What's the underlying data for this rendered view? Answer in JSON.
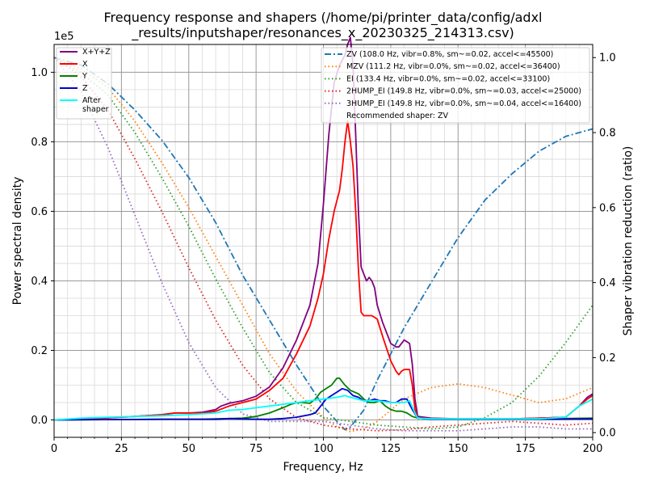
{
  "chart_data": {
    "type": "line",
    "title_line1": "Frequency response and shapers (/home/pi/printer_data/config/adxl",
    "title_line2": "_results/inputshaper/resonances_x_20230325_214313.csv)",
    "xlabel": "Frequency, Hz",
    "ylabel": "Power spectral density",
    "y2label": "Shaper vibration reduction (ratio)",
    "y_multiplier": "1e5",
    "xlim": [
      0,
      200
    ],
    "ylim": [
      -0.05,
      1.08
    ],
    "y2lim": [
      -0.0125,
      1.035
    ],
    "xticks": [
      "0",
      "25",
      "50",
      "75",
      "100",
      "125",
      "150",
      "175",
      "200"
    ],
    "yticks": [
      "0.0",
      "0.2",
      "0.4",
      "0.6",
      "0.8",
      "1.0"
    ],
    "y2ticks": [
      "0.0",
      "0.2",
      "0.4",
      "0.6",
      "0.8",
      "1.0"
    ],
    "grid": true,
    "psd_series": [
      {
        "name": "X+Y+Z",
        "color": "#800080",
        "x": [
          0,
          5,
          10,
          20,
          30,
          40,
          45,
          50,
          55,
          60,
          62,
          65,
          70,
          75,
          80,
          85,
          90,
          95,
          98,
          100,
          102,
          104,
          106,
          108,
          109,
          110,
          111,
          112,
          113,
          114,
          115,
          116,
          117,
          118,
          119,
          120,
          122,
          125,
          127,
          128,
          130,
          132,
          133,
          134,
          135,
          140,
          150,
          160,
          170,
          180,
          190,
          195,
          198,
          200
        ],
        "y": [
          0,
          0.002,
          0.004,
          0.006,
          0.01,
          0.015,
          0.02,
          0.02,
          0.022,
          0.03,
          0.04,
          0.048,
          0.055,
          0.068,
          0.095,
          0.15,
          0.23,
          0.33,
          0.45,
          0.62,
          0.82,
          0.97,
          1.02,
          1.05,
          1.08,
          1.1,
          1.02,
          0.82,
          0.6,
          0.44,
          0.42,
          0.4,
          0.41,
          0.4,
          0.38,
          0.33,
          0.28,
          0.22,
          0.21,
          0.21,
          0.23,
          0.22,
          0.16,
          0.06,
          0.01,
          0.005,
          0.003,
          0.003,
          0.003,
          0.005,
          0.008,
          0.04,
          0.065,
          0.075
        ]
      },
      {
        "name": "X",
        "color": "#ff0000",
        "x": [
          0,
          5,
          10,
          20,
          30,
          40,
          45,
          50,
          55,
          60,
          65,
          70,
          75,
          80,
          85,
          90,
          95,
          98,
          100,
          102,
          104,
          106,
          107,
          108,
          109,
          110,
          111,
          112,
          113,
          114,
          115,
          118,
          120,
          122,
          125,
          127,
          128,
          129,
          130,
          132,
          133,
          134,
          135,
          140,
          150,
          160,
          170,
          180,
          190,
          195,
          198,
          200
        ],
        "y": [
          0,
          0.002,
          0.004,
          0.006,
          0.01,
          0.015,
          0.02,
          0.02,
          0.02,
          0.025,
          0.04,
          0.05,
          0.06,
          0.085,
          0.12,
          0.19,
          0.27,
          0.35,
          0.42,
          0.52,
          0.6,
          0.66,
          0.72,
          0.8,
          0.86,
          0.8,
          0.73,
          0.6,
          0.43,
          0.31,
          0.3,
          0.3,
          0.29,
          0.24,
          0.17,
          0.14,
          0.13,
          0.14,
          0.145,
          0.145,
          0.1,
          0.03,
          0.005,
          0.003,
          0.003,
          0.003,
          0.003,
          0.005,
          0.008,
          0.04,
          0.06,
          0.07
        ]
      },
      {
        "name": "Y",
        "color": "#008000",
        "x": [
          0,
          20,
          40,
          55,
          60,
          65,
          70,
          75,
          80,
          85,
          88,
          90,
          92,
          95,
          97,
          99,
          101,
          103,
          105,
          106,
          107,
          108,
          110,
          113,
          115,
          117,
          119,
          121,
          123,
          125,
          127,
          129,
          131,
          133,
          135,
          140,
          160,
          180,
          200
        ],
        "y": [
          0,
          0.001,
          0.002,
          0.002,
          0.003,
          0.004,
          0.005,
          0.01,
          0.02,
          0.035,
          0.045,
          0.05,
          0.05,
          0.048,
          0.06,
          0.08,
          0.09,
          0.1,
          0.12,
          0.12,
          0.11,
          0.1,
          0.085,
          0.075,
          0.06,
          0.05,
          0.05,
          0.055,
          0.04,
          0.03,
          0.025,
          0.025,
          0.02,
          0.01,
          0.005,
          0.003,
          0.002,
          0.003,
          0.005
        ]
      },
      {
        "name": "Z",
        "color": "#0000cd",
        "x": [
          0,
          20,
          40,
          50,
          60,
          65,
          70,
          75,
          80,
          85,
          90,
          95,
          97,
          99,
          101,
          103,
          105,
          107,
          109,
          111,
          113,
          115,
          117,
          119,
          121,
          123,
          125,
          127,
          129,
          131,
          133,
          135,
          140,
          160,
          180,
          200
        ],
        "y": [
          0,
          0.001,
          0.002,
          0.002,
          0.002,
          0.004,
          0.003,
          0.002,
          0.002,
          0.004,
          0.008,
          0.015,
          0.02,
          0.04,
          0.06,
          0.07,
          0.08,
          0.09,
          0.085,
          0.07,
          0.065,
          0.055,
          0.055,
          0.06,
          0.055,
          0.055,
          0.05,
          0.05,
          0.06,
          0.06,
          0.03,
          0.005,
          0.002,
          0.002,
          0.002,
          0.003
        ]
      },
      {
        "name": "After\nshaper",
        "color": "#00ffff",
        "x": [
          0,
          10,
          20,
          30,
          40,
          50,
          60,
          65,
          70,
          75,
          80,
          85,
          90,
          95,
          100,
          105,
          108,
          110,
          115,
          120,
          125,
          128,
          130,
          132,
          134,
          135,
          140,
          160,
          180,
          190,
          195,
          200
        ],
        "y": [
          0,
          0.005,
          0.008,
          0.01,
          0.012,
          0.015,
          0.02,
          0.028,
          0.03,
          0.035,
          0.04,
          0.045,
          0.05,
          0.055,
          0.06,
          0.065,
          0.07,
          0.065,
          0.055,
          0.055,
          0.05,
          0.05,
          0.05,
          0.055,
          0.02,
          0.005,
          0.003,
          0.003,
          0.003,
          0.008,
          0.04,
          0.06
        ]
      }
    ],
    "shaper_series": [
      {
        "name": "ZV (108.0 Hz, vibr=0.8%, sm~=0.02, accel<=45500)",
        "color": "#1f77b4",
        "dash": "dashdot",
        "x": [
          0,
          10,
          20,
          30,
          40,
          50,
          60,
          70,
          80,
          90,
          100,
          105,
          108,
          110,
          115,
          120,
          130,
          140,
          150,
          160,
          170,
          180,
          190,
          200
        ],
        "y": [
          1.0,
          0.98,
          0.93,
          0.86,
          0.78,
          0.68,
          0.56,
          0.42,
          0.3,
          0.18,
          0.07,
          0.03,
          0.008,
          0.015,
          0.06,
          0.14,
          0.28,
          0.4,
          0.52,
          0.62,
          0.69,
          0.75,
          0.79,
          0.81
        ]
      },
      {
        "name": "MZV (111.2 Hz, vibr=0.0%, sm~=0.02, accel<=36400)",
        "color": "#ff7f0e",
        "dash": "dotted",
        "x": [
          0,
          10,
          20,
          30,
          40,
          50,
          60,
          70,
          80,
          90,
          100,
          105,
          110,
          115,
          120,
          125,
          130,
          140,
          150,
          160,
          170,
          180,
          190,
          200
        ],
        "y": [
          1.0,
          0.97,
          0.92,
          0.83,
          0.72,
          0.6,
          0.47,
          0.34,
          0.21,
          0.11,
          0.04,
          0.015,
          0.003,
          0.01,
          0.03,
          0.06,
          0.09,
          0.12,
          0.13,
          0.12,
          0.1,
          0.08,
          0.09,
          0.12
        ]
      },
      {
        "name": "EI (133.4 Hz, vibr=0.0%, sm~=0.02, accel<=33100)",
        "color": "#2ca02c",
        "dash": "dotted",
        "x": [
          0,
          10,
          20,
          30,
          40,
          50,
          60,
          70,
          80,
          90,
          100,
          110,
          120,
          130,
          140,
          150,
          160,
          170,
          180,
          190,
          200
        ],
        "y": [
          1.0,
          0.96,
          0.9,
          0.8,
          0.68,
          0.55,
          0.41,
          0.28,
          0.16,
          0.08,
          0.04,
          0.03,
          0.02,
          0.015,
          0.01,
          0.015,
          0.04,
          0.08,
          0.15,
          0.24,
          0.34
        ]
      },
      {
        "name": "2HUMP_EI (149.8 Hz, vibr=0.0%, sm~=0.03, accel<=25000)",
        "color": "#d62728",
        "dash": "dotted",
        "x": [
          0,
          10,
          20,
          30,
          40,
          50,
          60,
          70,
          80,
          90,
          100,
          110,
          120,
          130,
          140,
          150,
          160,
          170,
          180,
          190,
          200
        ],
        "y": [
          1.0,
          0.95,
          0.86,
          0.73,
          0.59,
          0.44,
          0.3,
          0.18,
          0.09,
          0.04,
          0.02,
          0.01,
          0.005,
          0.008,
          0.015,
          0.02,
          0.025,
          0.03,
          0.025,
          0.02,
          0.025
        ]
      },
      {
        "name": "3HUMP_EI (149.8 Hz, vibr=0.0%, sm~=0.04, accel<=16400)",
        "color": "#9467bd",
        "dash": "dotted",
        "x": [
          0,
          10,
          20,
          30,
          40,
          50,
          60,
          70,
          80,
          90,
          100,
          110,
          120,
          130,
          140,
          150,
          160,
          170,
          180,
          190,
          200
        ],
        "y": [
          1.0,
          0.91,
          0.76,
          0.58,
          0.4,
          0.24,
          0.12,
          0.05,
          0.03,
          0.03,
          0.03,
          0.02,
          0.01,
          0.005,
          0.005,
          0.005,
          0.01,
          0.015,
          0.015,
          0.01,
          0.01
        ]
      }
    ],
    "recommended": "Recommended shaper: ZV"
  }
}
